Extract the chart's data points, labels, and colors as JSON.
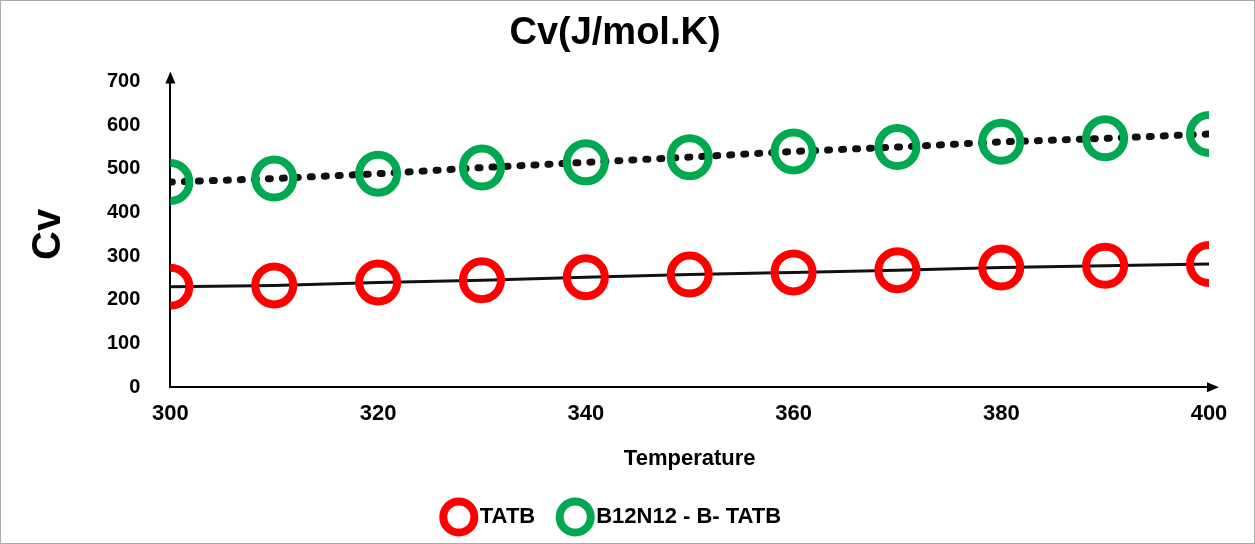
{
  "chart_data": {
    "type": "line",
    "title": "Cv(J/mol.K)",
    "xlabel": "Temperature",
    "ylabel": "Cv",
    "x": [
      300,
      310,
      320,
      330,
      340,
      350,
      360,
      370,
      380,
      390,
      400
    ],
    "series": [
      {
        "name": "TATB",
        "color": "#ff0000",
        "line_style": "solid",
        "values": [
          230,
          233,
          240,
          245,
          252,
          258,
          263,
          268,
          274,
          278,
          282
        ]
      },
      {
        "name": "B12N12 - B- TATB",
        "color": "#00a850",
        "line_style": "dotted",
        "values": [
          470,
          478,
          489,
          503,
          515,
          527,
          540,
          550,
          562,
          570,
          580
        ]
      }
    ],
    "xlim": [
      300,
      400
    ],
    "xticks": [
      300,
      320,
      340,
      360,
      380,
      400
    ],
    "ylim": [
      0,
      700
    ],
    "yticks": [
      0,
      100,
      200,
      300,
      400,
      500,
      600,
      700
    ],
    "grid": false,
    "legend": "bottom",
    "marker": "circle"
  }
}
